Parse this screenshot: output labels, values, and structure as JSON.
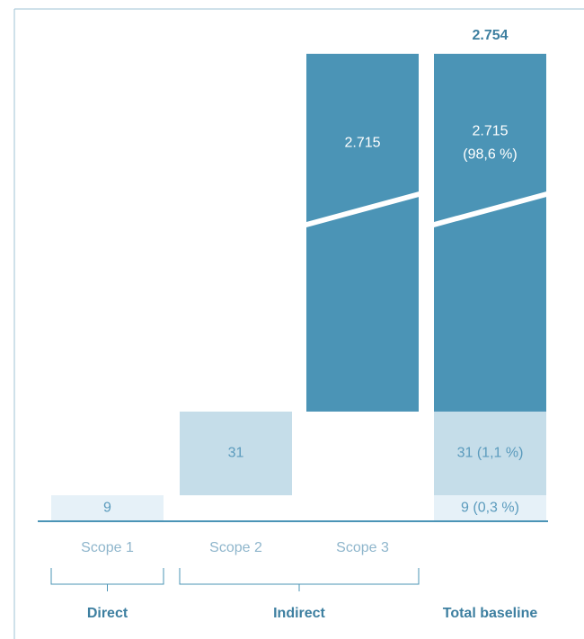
{
  "chart_data": {
    "type": "waterfall",
    "categories": [
      "Scope 1",
      "Scope 2",
      "Scope 3",
      null
    ],
    "groups": [
      "Direct",
      "Indirect",
      "Total baseline"
    ],
    "series": [
      {
        "color": "#e6f1f8",
        "values": [
          9,
          null,
          null,
          9
        ],
        "value_labels": [
          "9",
          null,
          null,
          "9 (0,3 %)"
        ]
      },
      {
        "color": "#c5dde9",
        "values": [
          null,
          31,
          null,
          31
        ],
        "value_labels": [
          null,
          "31",
          null,
          "31 (1,1 %)"
        ]
      },
      {
        "color": "#4b94b6",
        "values": [
          null,
          null,
          2715,
          2715
        ],
        "value_labels": [
          null,
          null,
          "2.715",
          "2.715\n(98,6 %)"
        ]
      }
    ],
    "total": 2754,
    "total_label": "2.754"
  }
}
